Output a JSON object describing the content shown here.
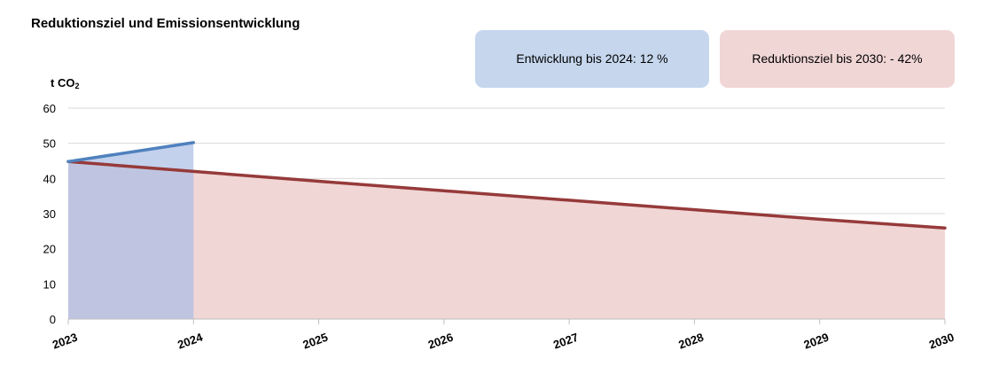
{
  "chart_data": {
    "type": "area",
    "title": "Reduktionsziel und Emissionsentwicklung",
    "ylabel": "t CO",
    "ylabel_subscript": "2",
    "ylim": [
      0,
      60
    ],
    "yticks": [
      0,
      10,
      20,
      30,
      40,
      50,
      60
    ],
    "grid": true,
    "categories": [
      "2023",
      "2024",
      "2025",
      "2026",
      "2027",
      "2028",
      "2029",
      "2030"
    ],
    "series": [
      {
        "key": "entwicklung",
        "x": [
          "2023",
          "2024"
        ],
        "values": [
          44.8,
          50.2
        ],
        "line_color": "#4f81bd",
        "fill_color": "#a9bde6"
      },
      {
        "key": "reduktionsziel",
        "x": [
          "2023",
          "2024",
          "2025",
          "2026",
          "2027",
          "2028",
          "2029",
          "2030"
        ],
        "values": [
          44.8,
          42.0,
          39.2,
          36.5,
          33.8,
          31.1,
          28.4,
          25.9
        ],
        "line_color": "#963a3a",
        "fill_color": "#f1d6d6"
      }
    ],
    "annotations": [
      "Entwicklung bis 2024: 12 %",
      "Reduktionsziel bis 2030: - 42%"
    ]
  }
}
